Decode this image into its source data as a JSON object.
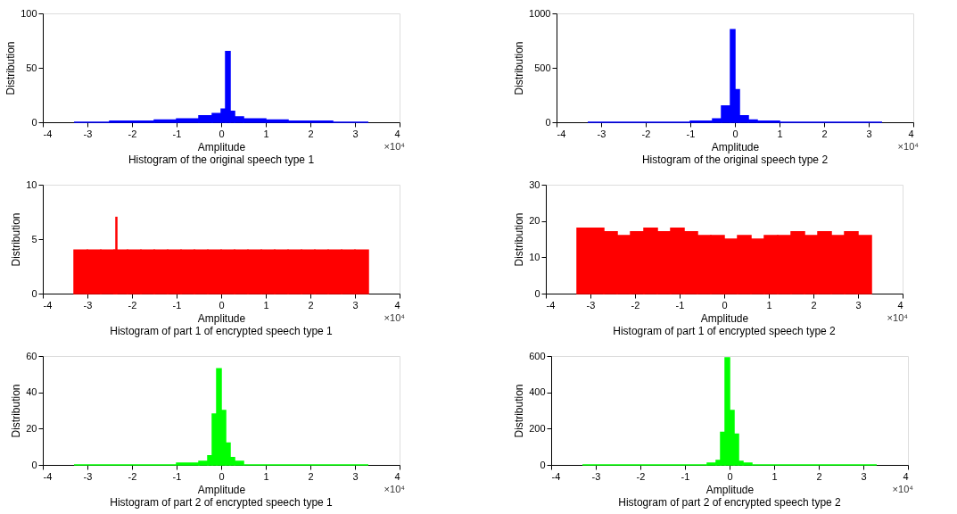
{
  "chart_data": [
    {
      "type": "histogram",
      "title": "Histogram of the original speech type 1",
      "xlabel": "Amplitude",
      "ylabel": "Distribution",
      "annotations": [
        "×10⁴"
      ],
      "color": "#0000ff",
      "bins": [
        -3.3,
        -2.5,
        -1.5,
        -1,
        -0.5,
        -0.2,
        0,
        0.1,
        0.2,
        0.3,
        0.5,
        1,
        1.5,
        2.5,
        3.3
      ],
      "values": [
        0,
        1,
        2,
        3,
        6,
        8,
        12,
        65,
        10,
        5,
        3,
        2,
        1,
        0
      ],
      "xlim": [
        -4,
        4
      ],
      "xticks": [
        -4,
        -3,
        -2,
        -1,
        0,
        1,
        2,
        3,
        4
      ],
      "ylim": [
        0,
        100
      ],
      "yticks": [
        0,
        50,
        100
      ]
    },
    {
      "type": "histogram",
      "title": "Histogram of the original speech type 2",
      "xlabel": "Amplitude",
      "ylabel": "Distribution",
      "annotations": [
        "×10⁴"
      ],
      "color": "#0000ff",
      "bins": [
        -3.3,
        -2,
        -1,
        -0.5,
        -0.3,
        -0.1,
        0,
        0.1,
        0.3,
        0.5,
        1,
        2,
        3.3
      ],
      "values": [
        0,
        0,
        10,
        30,
        150,
        850,
        300,
        60,
        20,
        10,
        0,
        0
      ],
      "xlim": [
        -4,
        4
      ],
      "xticks": [
        -4,
        -3,
        -2,
        -1,
        0,
        1,
        2,
        3,
        4
      ],
      "ylim": [
        0,
        1000
      ],
      "yticks": [
        0,
        500,
        1000
      ]
    },
    {
      "type": "histogram",
      "title": "Histogram of part 1 of encrypted speech type 1",
      "xlabel": "Amplitude",
      "ylabel": "Distribution",
      "annotations": [
        "×10⁴"
      ],
      "color": "#ff0000",
      "bins": [
        -3.3,
        -3,
        -2.7,
        -2.4,
        -2.36,
        -2.34,
        -2.1,
        -1.8,
        -1.5,
        -1.2,
        -0.9,
        -0.6,
        -0.3,
        0,
        0.3,
        0.6,
        0.9,
        1.2,
        1.5,
        1.8,
        2.1,
        2.4,
        2.7,
        3,
        3.3
      ],
      "values": [
        4,
        4,
        4,
        4,
        7,
        4,
        4,
        4,
        4,
        4,
        4,
        4,
        4,
        4,
        4,
        4,
        4,
        4,
        4,
        4,
        4,
        4,
        4,
        4
      ],
      "xlim": [
        -4,
        4
      ],
      "xticks": [
        -4,
        -3,
        -2,
        -1,
        0,
        1,
        2,
        3,
        4
      ],
      "ylim": [
        0,
        10
      ],
      "yticks": [
        0,
        5,
        10
      ]
    },
    {
      "type": "histogram",
      "title": "Histogram of part 1 of encrypted speech type 2",
      "xlabel": "Amplitude",
      "ylabel": "Distribution",
      "annotations": [
        "×10⁴"
      ],
      "color": "#ff0000",
      "bins": [
        -3.3,
        -3,
        -2.7,
        -2.4,
        -2.1,
        -1.8,
        -1.5,
        -1.2,
        -0.9,
        -0.6,
        -0.3,
        0,
        0.3,
        0.6,
        0.9,
        1.2,
        1.5,
        1.8,
        2.1,
        2.4,
        2.7,
        3,
        3.3
      ],
      "values": [
        18,
        18,
        17,
        16,
        17,
        18,
        17,
        18,
        17,
        16,
        16,
        15,
        16,
        15,
        16,
        16,
        17,
        16,
        17,
        16,
        17,
        16
      ],
      "xlim": [
        -4,
        4
      ],
      "xticks": [
        -4,
        -3,
        -2,
        -1,
        0,
        1,
        2,
        3,
        4
      ],
      "ylim": [
        0,
        30
      ],
      "yticks": [
        0,
        10,
        20,
        30
      ]
    },
    {
      "type": "histogram",
      "title": "Histogram of part 2 of encrypted speech type 1",
      "xlabel": "Amplitude",
      "ylabel": "Distribution",
      "annotations": [
        "×10⁴"
      ],
      "color": "#00ff00",
      "bins": [
        -3.3,
        -1,
        -0.5,
        -0.3,
        -0.2,
        -0.1,
        0,
        0.1,
        0.2,
        0.3,
        0.5,
        1,
        3.3
      ],
      "values": [
        0,
        1,
        2,
        5,
        28,
        53,
        30,
        12,
        4,
        2,
        0,
        0
      ],
      "xlim": [
        -4,
        4
      ],
      "xticks": [
        -4,
        -3,
        -2,
        -1,
        0,
        1,
        2,
        3,
        4
      ],
      "ylim": [
        0,
        60
      ],
      "yticks": [
        0,
        20,
        40,
        60
      ]
    },
    {
      "type": "histogram",
      "title": "Histogram of part 2 of encrypted speech type 2",
      "xlabel": "Amplitude",
      "ylabel": "Distribution",
      "annotations": [
        "×10⁴"
      ],
      "color": "#00ff00",
      "bins": [
        -3.3,
        -0.5,
        -0.3,
        -0.2,
        -0.1,
        0,
        0.1,
        0.2,
        0.3,
        0.5,
        3.3
      ],
      "values": [
        0,
        10,
        25,
        180,
        590,
        300,
        170,
        20,
        10,
        0
      ],
      "xlim": [
        -4,
        4
      ],
      "xticks": [
        -4,
        -3,
        -2,
        -1,
        0,
        1,
        2,
        3,
        4
      ],
      "ylim": [
        0,
        600
      ],
      "yticks": [
        0,
        200,
        400,
        600
      ]
    }
  ]
}
